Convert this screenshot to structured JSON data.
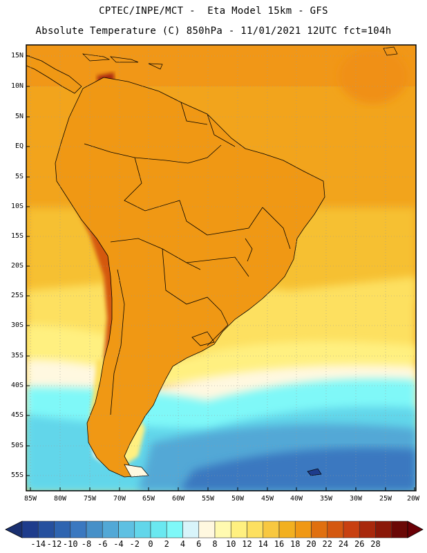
{
  "header": {
    "line1": "CPTEC/INPE/MCT -  Eta Model 15km - GFS",
    "line2": "Absolute Temperature (C) 850hPa - 11/01/2021 12UTC fct=104h"
  },
  "axes": {
    "lat_labels": [
      "15N",
      "10N",
      "5N",
      "EQ",
      "5S",
      "10S",
      "15S",
      "20S",
      "25S",
      "30S",
      "35S",
      "40S",
      "45S",
      "50S",
      "55S"
    ],
    "lon_labels": [
      "85W",
      "80W",
      "75W",
      "70W",
      "65W",
      "60W",
      "55W",
      "50W",
      "45W",
      "40W",
      "35W",
      "30W",
      "25W",
      "20W"
    ]
  },
  "colorbar": {
    "labels": [
      "-14",
      "-12",
      "-10",
      "-8",
      "-6",
      "-4",
      "-2",
      "0",
      "2",
      "4",
      "6",
      "8",
      "10",
      "12",
      "14",
      "16",
      "18",
      "20",
      "22",
      "24",
      "26",
      "28"
    ],
    "colors": [
      "#1e3c8c",
      "#26509e",
      "#2e64b0",
      "#3a78c0",
      "#4690c8",
      "#52a8d6",
      "#5ec0e2",
      "#62d6ea",
      "#6ae8f0",
      "#7ff8f8",
      "#d8f4fa",
      "#fff8e0",
      "#fffab0",
      "#fff080",
      "#fde060",
      "#f8c840",
      "#f2b020",
      "#f09814",
      "#e07010",
      "#d45810",
      "#c84010",
      "#a8280c",
      "#8a1808",
      "#6a0806"
    ],
    "left_arrow_color": "#1a3070",
    "right_arrow_color": "#6a0006"
  },
  "colors": {
    "ocean_warm": "#f2a41c",
    "ocean_mid": "#f8d040",
    "ocean_cool": "#6ae8f0",
    "ocean_cold": "#4690c8",
    "land_hot": "#c84010",
    "land_extreme": "#8a1808"
  }
}
